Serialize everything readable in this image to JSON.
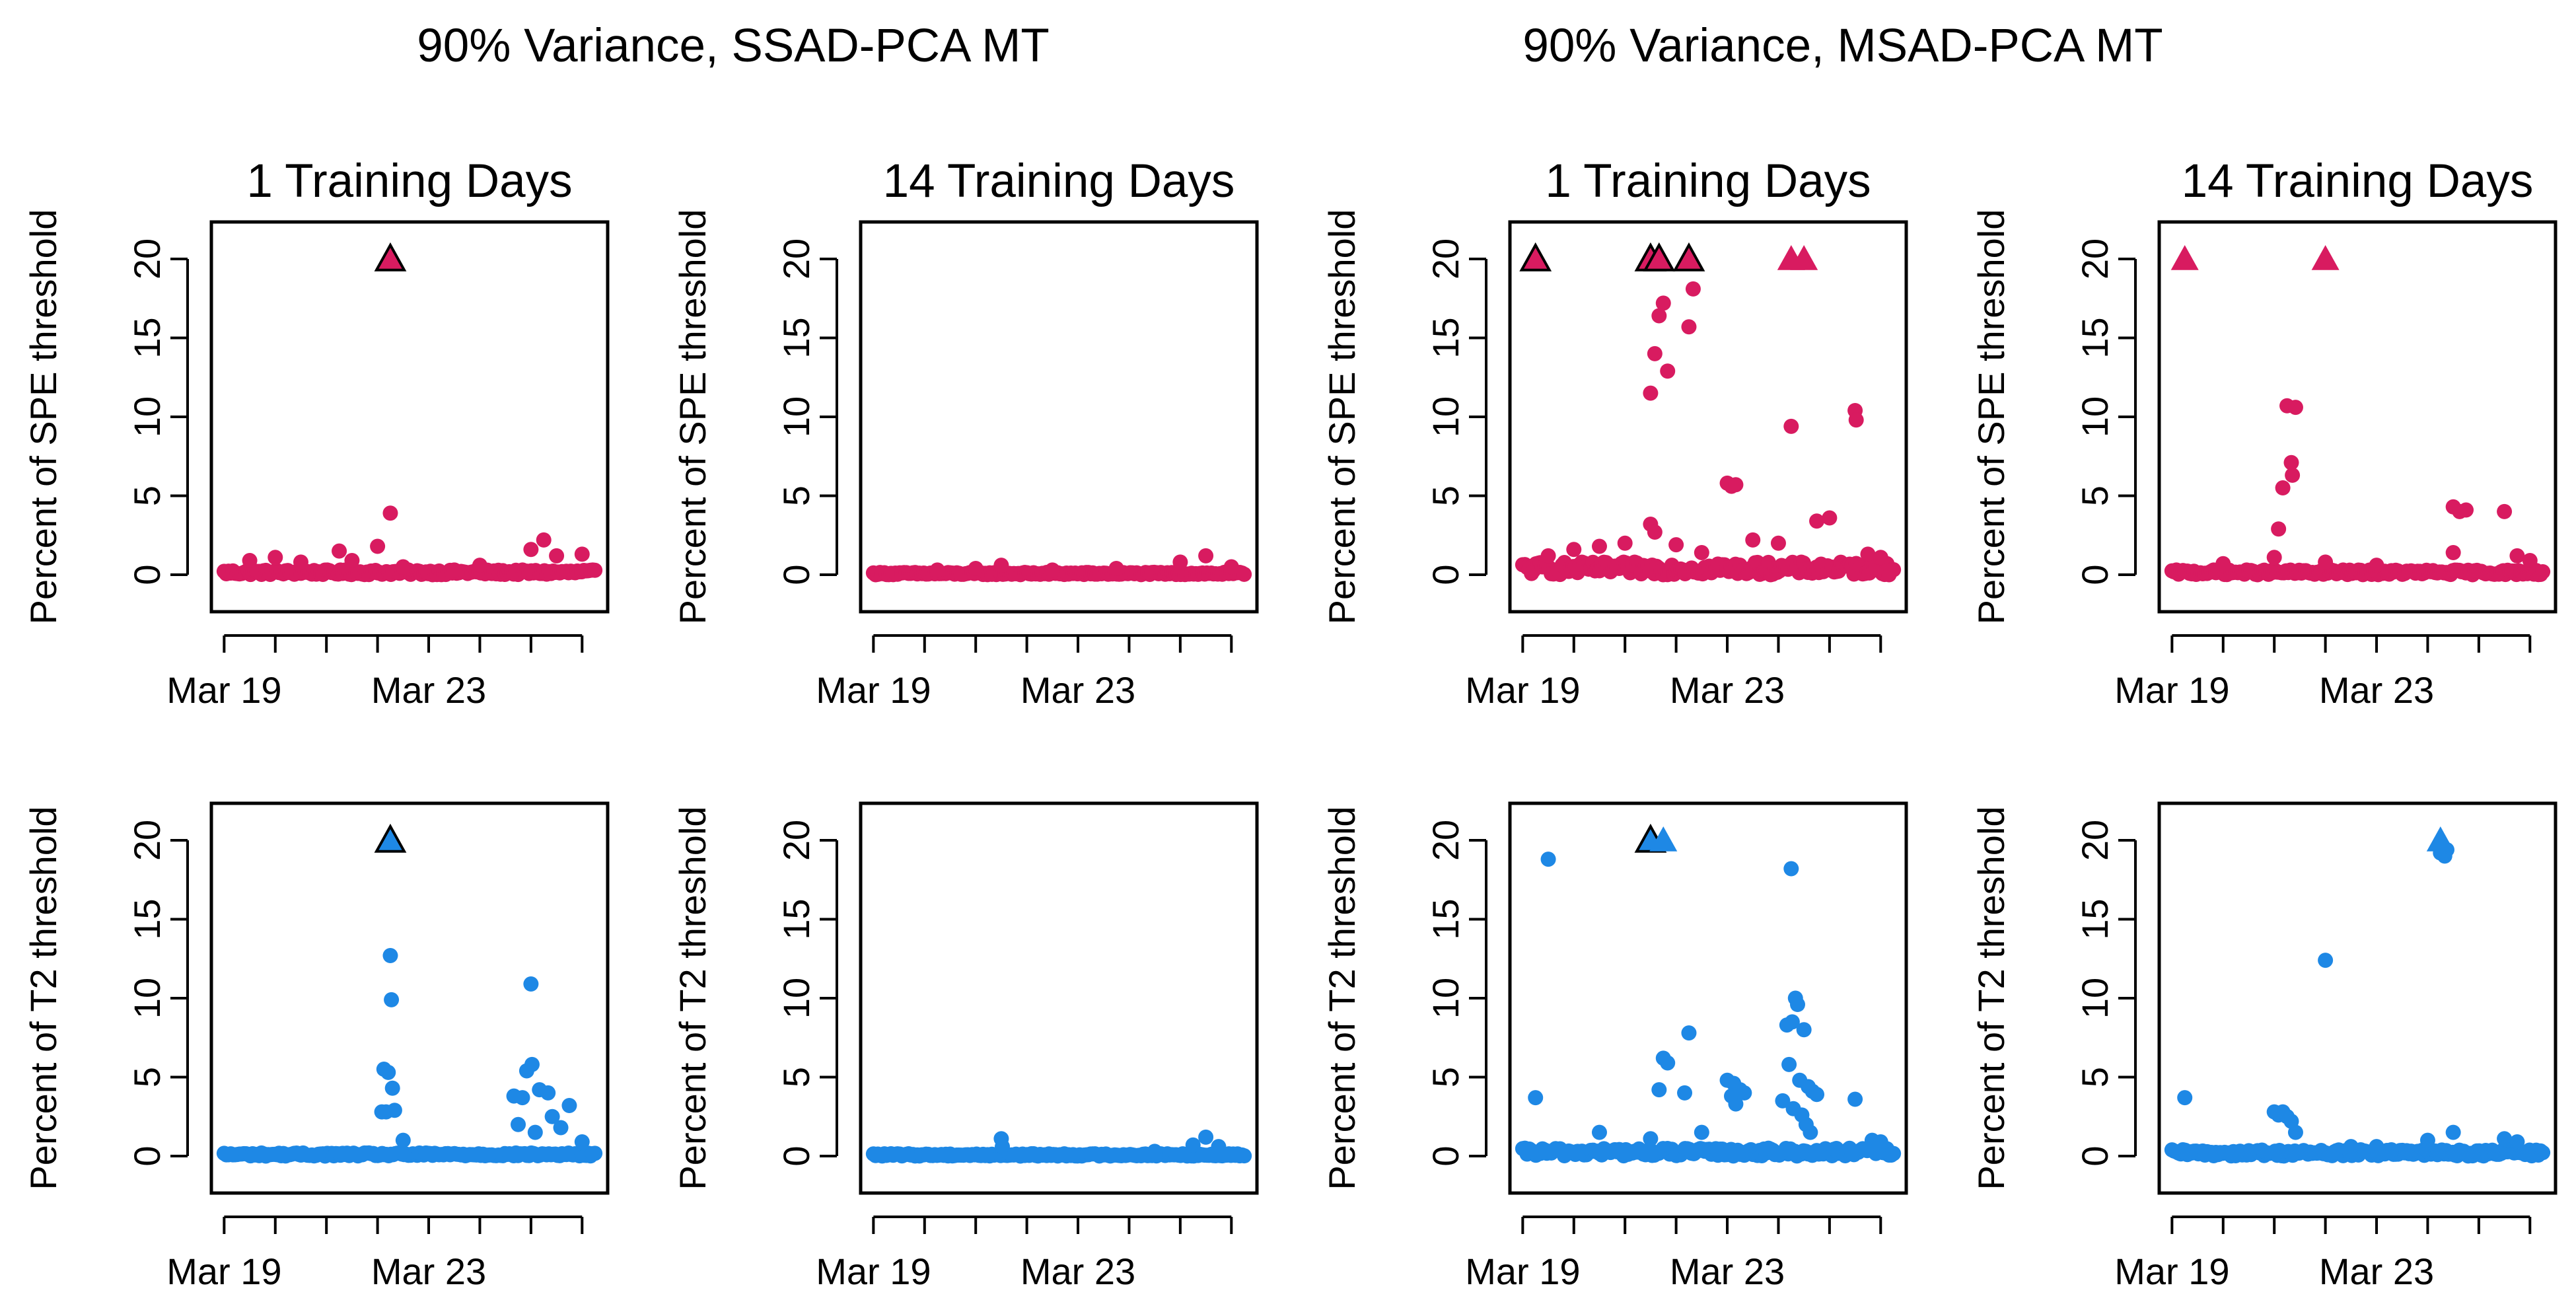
{
  "figure": {
    "group_titles": [
      "90% Variance, SSAD-PCA MT",
      "90% Variance, MSAD-PCA MT"
    ],
    "x_tick_labels": [
      "Mar 19",
      "Mar 23"
    ],
    "y_tick_labels": [
      "0",
      "5",
      "10",
      "15",
      "20"
    ]
  },
  "colors": {
    "spe": "#d81b60",
    "t2": "#1e88e5",
    "outline": "#000000"
  },
  "chart_data": [
    {
      "type": "scatter",
      "group": "90% Variance, SSAD-PCA MT",
      "title": "1 Training Days",
      "xlabel": "",
      "ylabel": "Percent of SPE threshold",
      "metric": "spe",
      "xlim": [
        "2020-03-18 18:00",
        "2020-03-26 12:00"
      ],
      "ylim": [
        0,
        20
      ],
      "grid": false,
      "points": [
        [
          "2020-03-19 12:00",
          0.9
        ],
        [
          "2020-03-20 00:00",
          1.1
        ],
        [
          "2020-03-20 12:00",
          0.8
        ],
        [
          "2020-03-21 06:00",
          1.5
        ],
        [
          "2020-03-21 12:00",
          0.9
        ],
        [
          "2020-03-22 00:00",
          1.8
        ],
        [
          "2020-03-22 06:00",
          3.9
        ],
        [
          "2020-03-22 12:00",
          0.5
        ],
        [
          "2020-03-23 12:00",
          0.3
        ],
        [
          "2020-03-24 00:00",
          0.6
        ],
        [
          "2020-03-25 00:00",
          1.6
        ],
        [
          "2020-03-25 06:00",
          2.2
        ],
        [
          "2020-03-25 12:00",
          1.2
        ],
        [
          "2020-03-26 00:00",
          1.3
        ]
      ],
      "baseline_max": 0.3,
      "triangles": [
        {
          "x": "2020-03-22 06:00",
          "outlined": true
        }
      ]
    },
    {
      "type": "scatter",
      "group": "90% Variance, SSAD-PCA MT",
      "title": "14 Training Days",
      "xlabel": "",
      "ylabel": "Percent of SPE threshold",
      "metric": "spe",
      "xlim": [
        "2020-03-18 18:00",
        "2020-03-26 12:00"
      ],
      "ylim": [
        0,
        20
      ],
      "grid": false,
      "points": [
        [
          "2020-03-20 06:00",
          0.3
        ],
        [
          "2020-03-21 00:00",
          0.4
        ],
        [
          "2020-03-21 12:00",
          0.6
        ],
        [
          "2020-03-22 12:00",
          0.3
        ],
        [
          "2020-03-23 18:00",
          0.4
        ],
        [
          "2020-03-25 00:00",
          0.8
        ],
        [
          "2020-03-25 12:00",
          1.2
        ],
        [
          "2020-03-26 00:00",
          0.5
        ]
      ],
      "baseline_max": 0.15,
      "triangles": []
    },
    {
      "type": "scatter",
      "group": "90% Variance, MSAD-PCA MT",
      "title": "1 Training Days",
      "xlabel": "",
      "ylabel": "Percent of SPE threshold",
      "metric": "spe",
      "xlim": [
        "2020-03-18 18:00",
        "2020-03-26 12:00"
      ],
      "ylim": [
        0,
        20
      ],
      "grid": false,
      "points": [
        [
          "2020-03-21 12:00",
          11.5
        ],
        [
          "2020-03-21 14:00",
          14.0
        ],
        [
          "2020-03-21 16:00",
          16.4
        ],
        [
          "2020-03-21 18:00",
          17.2
        ],
        [
          "2020-03-21 20:00",
          12.9
        ],
        [
          "2020-03-22 06:00",
          15.7
        ],
        [
          "2020-03-22 08:00",
          18.1
        ],
        [
          "2020-03-21 12:00",
          3.2
        ],
        [
          "2020-03-21 14:00",
          2.7
        ],
        [
          "2020-03-23 00:00",
          5.8
        ],
        [
          "2020-03-23 02:00",
          5.6
        ],
        [
          "2020-03-23 04:00",
          5.7
        ],
        [
          "2020-03-24 06:00",
          9.4
        ],
        [
          "2020-03-25 12:00",
          10.4
        ],
        [
          "2020-03-25 12:30",
          9.8
        ],
        [
          "2020-03-24 18:00",
          3.4
        ],
        [
          "2020-03-25 00:00",
          3.6
        ],
        [
          "2020-03-19 12:00",
          1.2
        ],
        [
          "2020-03-20 00:00",
          1.6
        ],
        [
          "2020-03-20 12:00",
          1.8
        ],
        [
          "2020-03-21 00:00",
          2.0
        ],
        [
          "2020-03-22 00:00",
          1.9
        ],
        [
          "2020-03-22 12:00",
          1.4
        ],
        [
          "2020-03-23 12:00",
          2.2
        ],
        [
          "2020-03-24 00:00",
          2.0
        ],
        [
          "2020-03-25 18:00",
          1.3
        ],
        [
          "2020-03-26 00:00",
          1.1
        ]
      ],
      "baseline_max": 0.8,
      "triangles": [
        {
          "x": "2020-03-19 06:00",
          "outlined": true
        },
        {
          "x": "2020-03-21 12:00",
          "outlined": true
        },
        {
          "x": "2020-03-21 16:00",
          "outlined": true
        },
        {
          "x": "2020-03-22 06:00",
          "outlined": true
        },
        {
          "x": "2020-03-24 06:00",
          "outlined": false
        },
        {
          "x": "2020-03-24 12:00",
          "outlined": false
        }
      ]
    },
    {
      "type": "scatter",
      "group": "90% Variance, MSAD-PCA MT",
      "title": "14 Training Days",
      "xlabel": "",
      "ylabel": "Percent of SPE threshold",
      "metric": "spe",
      "xlim": [
        "2020-03-18 18:00",
        "2020-03-26 12:00"
      ],
      "ylim": [
        0,
        20
      ],
      "grid": false,
      "points": [
        [
          "2020-03-21 06:00",
          10.7
        ],
        [
          "2020-03-21 10:00",
          10.6
        ],
        [
          "2020-03-21 08:00",
          7.1
        ],
        [
          "2020-03-21 08:30",
          6.3
        ],
        [
          "2020-03-21 04:00",
          5.5
        ],
        [
          "2020-03-21 02:00",
          2.9
        ],
        [
          "2020-03-21 00:00",
          1.1
        ],
        [
          "2020-03-24 12:00",
          4.3
        ],
        [
          "2020-03-24 15:00",
          4.0
        ],
        [
          "2020-03-24 18:00",
          4.1
        ],
        [
          "2020-03-25 12:00",
          4.0
        ],
        [
          "2020-03-24 12:00",
          1.4
        ],
        [
          "2020-03-22 00:00",
          0.8
        ],
        [
          "2020-03-23 00:00",
          0.6
        ],
        [
          "2020-03-20 00:00",
          0.7
        ],
        [
          "2020-03-25 18:00",
          1.2
        ],
        [
          "2020-03-26 00:00",
          0.9
        ]
      ],
      "baseline_max": 0.3,
      "triangles": [
        {
          "x": "2020-03-19 06:00",
          "outlined": false
        },
        {
          "x": "2020-03-22 00:00",
          "outlined": false
        }
      ]
    },
    {
      "type": "scatter",
      "group": "90% Variance, SSAD-PCA MT",
      "title": "",
      "xlabel": "",
      "ylabel": "Percent of T2 threshold",
      "metric": "t2",
      "xlim": [
        "2020-03-18 18:00",
        "2020-03-26 12:00"
      ],
      "ylim": [
        0,
        20
      ],
      "grid": false,
      "points": [
        [
          "2020-03-22 06:00",
          12.7
        ],
        [
          "2020-03-22 06:30",
          9.9
        ],
        [
          "2020-03-22 03:00",
          5.5
        ],
        [
          "2020-03-22 05:00",
          5.3
        ],
        [
          "2020-03-22 07:00",
          4.3
        ],
        [
          "2020-03-22 04:00",
          2.8
        ],
        [
          "2020-03-22 08:00",
          2.9
        ],
        [
          "2020-03-22 02:00",
          2.8
        ],
        [
          "2020-03-25 00:00",
          10.9
        ],
        [
          "2020-03-25 00:30",
          5.8
        ],
        [
          "2020-03-24 22:00",
          5.4
        ],
        [
          "2020-03-24 16:00",
          3.8
        ],
        [
          "2020-03-24 20:00",
          3.7
        ],
        [
          "2020-03-25 04:00",
          4.2
        ],
        [
          "2020-03-25 08:00",
          4.0
        ],
        [
          "2020-03-25 10:00",
          2.5
        ],
        [
          "2020-03-25 18:00",
          3.2
        ],
        [
          "2020-03-25 14:00",
          1.8
        ],
        [
          "2020-03-24 18:00",
          2.0
        ],
        [
          "2020-03-25 02:00",
          1.5
        ],
        [
          "2020-03-26 00:00",
          0.9
        ],
        [
          "2020-03-22 12:00",
          1.0
        ]
      ],
      "baseline_max": 0.2,
      "triangles": [
        {
          "x": "2020-03-22 06:00",
          "outlined": true
        }
      ]
    },
    {
      "type": "scatter",
      "group": "90% Variance, SSAD-PCA MT",
      "title": "",
      "xlabel": "",
      "ylabel": "Percent of T2 threshold",
      "metric": "t2",
      "xlim": [
        "2020-03-18 18:00",
        "2020-03-26 12:00"
      ],
      "ylim": [
        0,
        20
      ],
      "grid": false,
      "points": [
        [
          "2020-03-21 12:00",
          1.1
        ],
        [
          "2020-03-21 12:30",
          0.6
        ],
        [
          "2020-03-25 12:00",
          1.2
        ],
        [
          "2020-03-25 06:00",
          0.7
        ],
        [
          "2020-03-25 18:00",
          0.6
        ],
        [
          "2020-03-24 12:00",
          0.3
        ]
      ],
      "baseline_max": 0.15,
      "triangles": []
    },
    {
      "type": "scatter",
      "group": "90% Variance, MSAD-PCA MT",
      "title": "",
      "xlabel": "",
      "ylabel": "Percent of T2 threshold",
      "metric": "t2",
      "xlim": [
        "2020-03-18 18:00",
        "2020-03-26 12:00"
      ],
      "ylim": [
        0,
        20
      ],
      "grid": false,
      "points": [
        [
          "2020-03-19 12:00",
          18.8
        ],
        [
          "2020-03-19 06:00",
          3.7
        ],
        [
          "2020-03-24 06:00",
          18.2
        ],
        [
          "2020-03-24 08:00",
          10.0
        ],
        [
          "2020-03-24 09:00",
          9.6
        ],
        [
          "2020-03-24 04:00",
          8.3
        ],
        [
          "2020-03-24 06:30",
          8.5
        ],
        [
          "2020-03-24 12:00",
          8.0
        ],
        [
          "2020-03-24 05:00",
          5.8
        ],
        [
          "2020-03-24 10:00",
          4.8
        ],
        [
          "2020-03-24 14:00",
          4.4
        ],
        [
          "2020-03-24 16:00",
          4.1
        ],
        [
          "2020-03-24 18:00",
          3.9
        ],
        [
          "2020-03-24 02:00",
          3.5
        ],
        [
          "2020-03-24 07:00",
          3.0
        ],
        [
          "2020-03-24 11:00",
          2.6
        ],
        [
          "2020-03-24 13:00",
          2.0
        ],
        [
          "2020-03-24 15:00",
          1.5
        ],
        [
          "2020-03-21 18:00",
          6.2
        ],
        [
          "2020-03-21 20:00",
          5.9
        ],
        [
          "2020-03-21 16:00",
          4.2
        ],
        [
          "2020-03-22 06:00",
          7.8
        ],
        [
          "2020-03-22 04:00",
          4.0
        ],
        [
          "2020-03-23 00:00",
          4.8
        ],
        [
          "2020-03-23 03:00",
          4.6
        ],
        [
          "2020-03-23 06:00",
          4.2
        ],
        [
          "2020-03-23 02:00",
          3.8
        ],
        [
          "2020-03-23 08:00",
          4.0
        ],
        [
          "2020-03-23 04:00",
          3.3
        ],
        [
          "2020-03-25 12:00",
          3.6
        ],
        [
          "2020-03-20 12:00",
          1.5
        ],
        [
          "2020-03-21 12:00",
          1.1
        ],
        [
          "2020-03-22 12:00",
          1.5
        ],
        [
          "2020-03-25 20:00",
          1.0
        ],
        [
          "2020-03-26 00:00",
          0.9
        ]
      ],
      "baseline_max": 0.5,
      "triangles": [
        {
          "x": "2020-03-21 12:00",
          "outlined": true
        },
        {
          "x": "2020-03-21 18:00",
          "outlined": false
        }
      ]
    },
    {
      "type": "scatter",
      "group": "90% Variance, MSAD-PCA MT",
      "title": "",
      "xlabel": "",
      "ylabel": "Percent of T2 threshold",
      "metric": "t2",
      "xlim": [
        "2020-03-18 18:00",
        "2020-03-26 12:00"
      ],
      "ylim": [
        0,
        20
      ],
      "grid": false,
      "points": [
        [
          "2020-03-19 06:00",
          3.7
        ],
        [
          "2020-03-22 00:00",
          12.4
        ],
        [
          "2020-03-24 06:00",
          19.2
        ],
        [
          "2020-03-24 07:00",
          19.5
        ],
        [
          "2020-03-24 09:00",
          19.4
        ],
        [
          "2020-03-24 08:00",
          19.0
        ],
        [
          "2020-03-21 00:00",
          2.8
        ],
        [
          "2020-03-21 02:00",
          2.6
        ],
        [
          "2020-03-21 04:00",
          2.8
        ],
        [
          "2020-03-21 06:00",
          2.5
        ],
        [
          "2020-03-21 08:00",
          2.2
        ],
        [
          "2020-03-21 10:00",
          1.5
        ],
        [
          "2020-03-24 12:00",
          1.5
        ],
        [
          "2020-03-24 00:00",
          1.0
        ],
        [
          "2020-03-25 12:00",
          1.1
        ],
        [
          "2020-03-25 18:00",
          0.9
        ],
        [
          "2020-03-22 12:00",
          0.6
        ],
        [
          "2020-03-23 00:00",
          0.6
        ]
      ],
      "baseline_max": 0.4,
      "triangles": [
        {
          "x": "2020-03-24 06:00",
          "outlined": false
        }
      ]
    }
  ]
}
